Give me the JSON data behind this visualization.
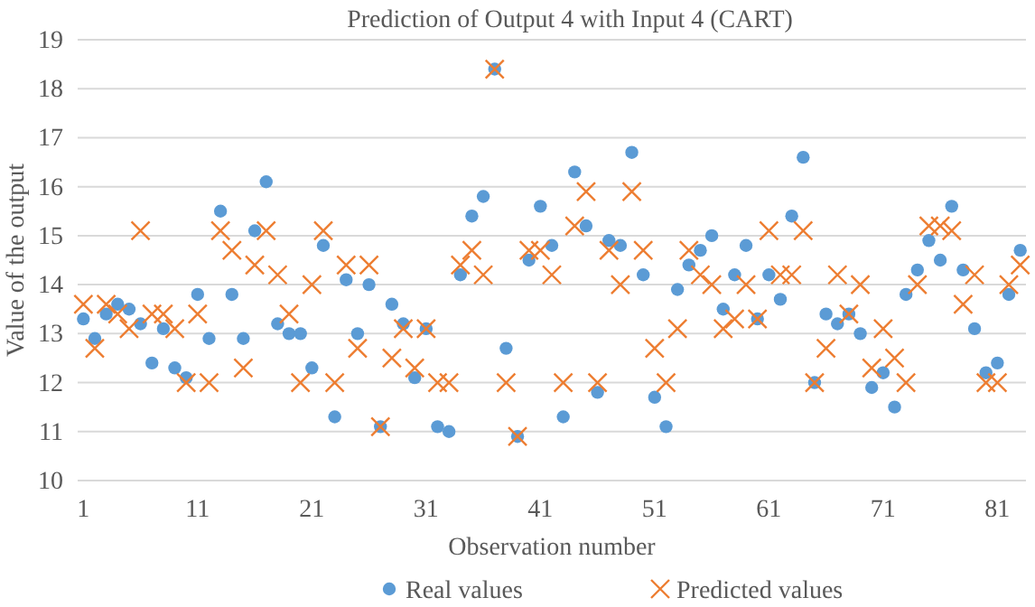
{
  "chart_data": {
    "type": "scatter",
    "title": "Prediction of Output 4 with Input 4 (CART)",
    "xlabel": "Observation number",
    "ylabel": "Value of the output",
    "x": [
      1,
      2,
      3,
      4,
      5,
      6,
      7,
      8,
      9,
      10,
      11,
      12,
      13,
      14,
      15,
      16,
      17,
      18,
      19,
      20,
      21,
      22,
      23,
      24,
      25,
      26,
      27,
      28,
      29,
      30,
      31,
      32,
      33,
      34,
      35,
      36,
      37,
      38,
      39,
      40,
      41,
      42,
      43,
      44,
      45,
      46,
      47,
      48,
      49,
      50,
      51,
      52,
      53,
      54,
      55,
      56,
      57,
      58,
      59,
      60,
      61,
      62,
      63,
      64,
      65,
      66,
      67,
      68,
      69,
      70,
      71,
      72,
      73,
      74,
      75,
      76,
      77,
      78,
      79,
      80,
      81,
      82,
      83
    ],
    "xlim": [
      0.5,
      83.5
    ],
    "xticks": [
      1,
      11,
      21,
      31,
      41,
      51,
      61,
      71,
      81
    ],
    "ylim": [
      10,
      19
    ],
    "yticks": [
      10,
      11,
      12,
      13,
      14,
      15,
      16,
      17,
      18,
      19
    ],
    "grid": "y",
    "legend": "bottom",
    "series": [
      {
        "name": "Real values",
        "color": "#5b9bd5",
        "marker": "circle",
        "values": [
          13.3,
          12.9,
          13.4,
          13.6,
          13.5,
          13.2,
          12.4,
          13.1,
          12.3,
          12.1,
          13.8,
          12.9,
          15.5,
          13.8,
          12.9,
          15.1,
          16.1,
          13.2,
          13.0,
          13.0,
          12.3,
          14.8,
          11.3,
          14.1,
          13.0,
          14.0,
          11.1,
          13.6,
          13.2,
          12.1,
          13.1,
          11.1,
          11.0,
          14.2,
          15.4,
          15.8,
          18.4,
          12.7,
          10.9,
          14.5,
          15.6,
          14.8,
          11.3,
          16.3,
          15.2,
          11.8,
          14.9,
          14.8,
          16.7,
          14.2,
          11.7,
          11.1,
          13.9,
          14.4,
          14.7,
          15.0,
          13.5,
          14.2,
          14.8,
          13.3,
          14.2,
          13.7,
          15.4,
          16.6,
          12.0,
          13.4,
          13.2,
          13.4,
          13.0,
          11.9,
          12.2,
          11.5,
          13.8,
          14.3,
          14.9,
          14.5,
          15.6,
          14.3,
          13.1,
          12.2,
          12.4,
          13.8,
          14.7
        ]
      },
      {
        "name": "Predicted values",
        "color": "#ed7d31",
        "marker": "cross",
        "values": [
          13.6,
          12.7,
          13.6,
          13.4,
          13.1,
          15.1,
          13.4,
          13.4,
          13.1,
          12.0,
          13.4,
          12.0,
          15.1,
          14.7,
          12.3,
          14.4,
          15.1,
          14.2,
          13.4,
          12.0,
          14.0,
          15.1,
          12.0,
          14.4,
          12.7,
          14.4,
          11.1,
          12.5,
          13.1,
          12.3,
          13.1,
          12.0,
          12.0,
          14.4,
          14.7,
          14.2,
          18.4,
          12.0,
          10.9,
          14.7,
          14.7,
          14.2,
          12.0,
          15.2,
          15.9,
          12.0,
          14.7,
          14.0,
          15.9,
          14.7,
          12.7,
          12.0,
          13.1,
          14.7,
          14.2,
          14.0,
          13.1,
          13.3,
          14.0,
          13.3,
          15.1,
          14.2,
          14.2,
          15.1,
          12.0,
          12.7,
          14.2,
          13.4,
          14.0,
          12.3,
          13.1,
          12.5,
          12.0,
          14.0,
          15.2,
          15.2,
          15.1,
          13.6,
          14.2,
          12.0,
          12.0,
          14.0,
          14.4
        ]
      }
    ]
  }
}
